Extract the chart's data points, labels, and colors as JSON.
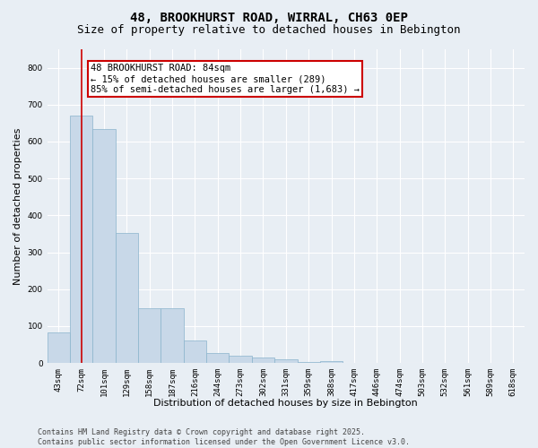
{
  "title": "48, BROOKHURST ROAD, WIRRAL, CH63 0EP",
  "subtitle": "Size of property relative to detached houses in Bebington",
  "xlabel": "Distribution of detached houses by size in Bebington",
  "ylabel": "Number of detached properties",
  "bar_color": "#c8d8e8",
  "bar_edgecolor": "#8ab4cc",
  "background_color": "#e8eef4",
  "grid_color": "#ffffff",
  "categories": [
    "43sqm",
    "72sqm",
    "101sqm",
    "129sqm",
    "158sqm",
    "187sqm",
    "216sqm",
    "244sqm",
    "273sqm",
    "302sqm",
    "331sqm",
    "359sqm",
    "388sqm",
    "417sqm",
    "446sqm",
    "474sqm",
    "503sqm",
    "532sqm",
    "561sqm",
    "589sqm",
    "618sqm"
  ],
  "values": [
    82,
    670,
    635,
    352,
    148,
    148,
    60,
    27,
    19,
    14,
    9,
    2,
    4,
    1,
    0,
    0,
    0,
    0,
    0,
    0,
    0
  ],
  "ylim": [
    0,
    850
  ],
  "yticks": [
    0,
    100,
    200,
    300,
    400,
    500,
    600,
    700,
    800
  ],
  "vline_x": 1.0,
  "vline_color": "#cc0000",
  "annotation_text": "48 BROOKHURST ROAD: 84sqm\n← 15% of detached houses are smaller (289)\n85% of semi-detached houses are larger (1,683) →",
  "annotation_box_facecolor": "#ffffff",
  "annotation_box_edgecolor": "#cc0000",
  "footer_text": "Contains HM Land Registry data © Crown copyright and database right 2025.\nContains public sector information licensed under the Open Government Licence v3.0.",
  "title_fontsize": 10,
  "subtitle_fontsize": 9,
  "axis_label_fontsize": 8,
  "tick_fontsize": 6.5,
  "annotation_fontsize": 7.5,
  "footer_fontsize": 6
}
